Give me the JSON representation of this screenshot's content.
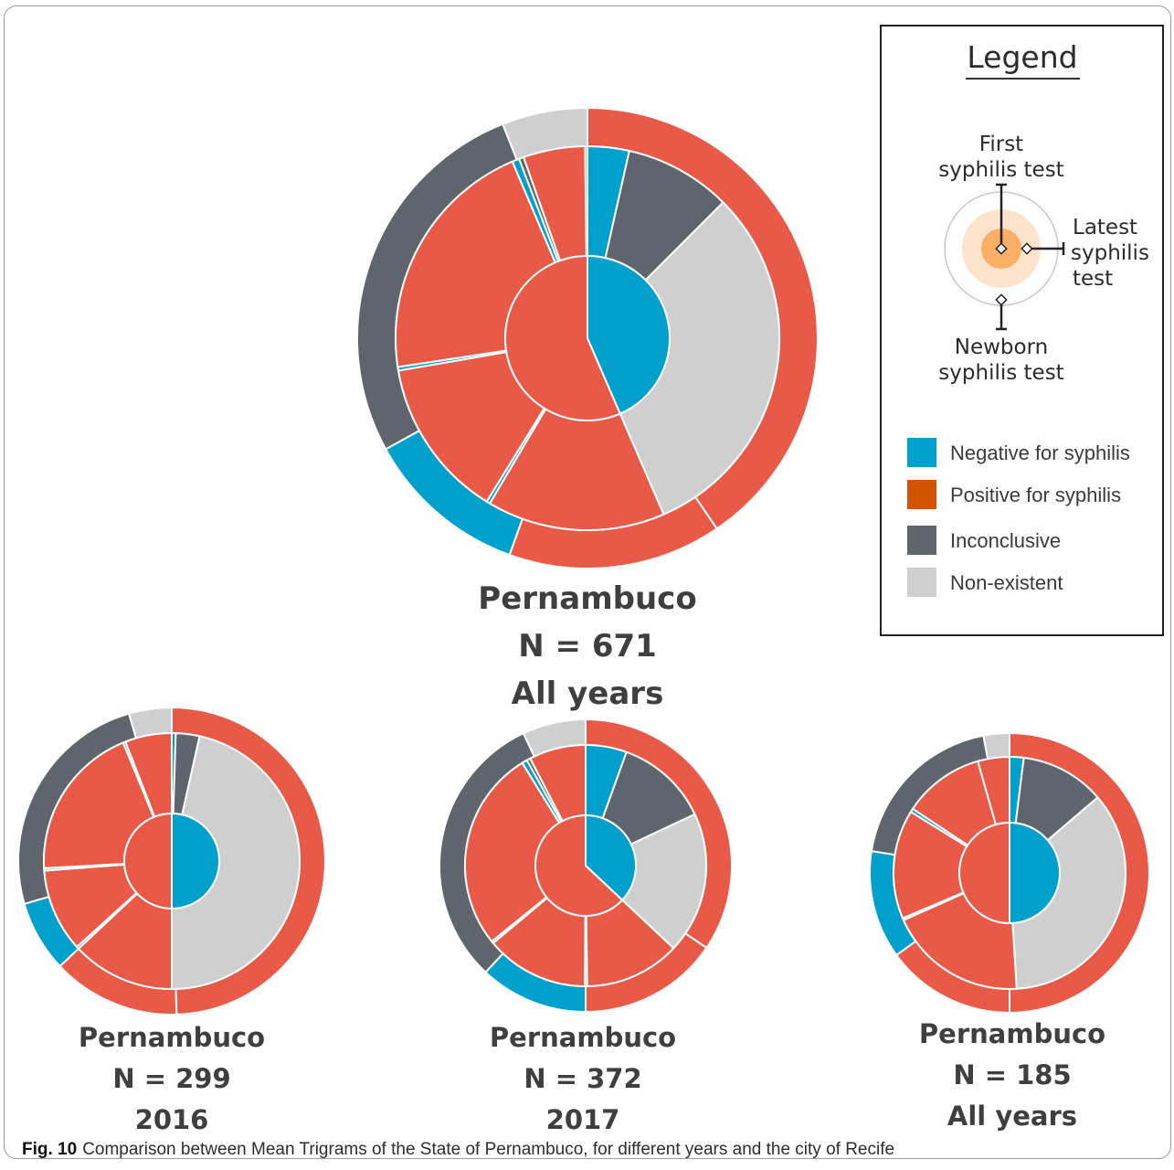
{
  "caption": {
    "label": "Fig. 10",
    "text": "Comparison between Mean Trigrams of the State of Pernambuco, for different years and the city of Recife"
  },
  "colors": {
    "negative": "#00a0cc",
    "positive": "#e85a47",
    "positive_legend": "#d35400",
    "inconclusive": "#5f656d",
    "nonexistent": "#cfcfcf"
  },
  "legend": {
    "title": "Legend",
    "first_label": [
      "First",
      "syphilis test"
    ],
    "latest_label": [
      "Latest",
      "syphilis",
      "test"
    ],
    "newborn_label": [
      "Newborn",
      "syphilis test"
    ],
    "items": [
      {
        "label": "Negative for syphilis",
        "color": "#00a0cc"
      },
      {
        "label": "Positive for syphilis",
        "color": "#d35400"
      },
      {
        "label": "Inconclusive",
        "color": "#5f656d"
      },
      {
        "label": "Non-existent",
        "color": "#cfcfcf"
      }
    ]
  },
  "chart_data": [
    {
      "type": "sunburst",
      "title_lines": [
        "Pernambuco",
        "N = 671",
        "All years"
      ],
      "rings": [
        "First syphilis test",
        "Latest syphilis test",
        "Newborn syphilis test"
      ],
      "inner": [
        {
          "status": "negative",
          "pct": 43.5
        },
        {
          "status": "positive",
          "pct": 56.5
        }
      ],
      "middle": [
        {
          "status": "negative",
          "pct": 3.5
        },
        {
          "status": "inconclusive",
          "pct": 9.0
        },
        {
          "status": "nonexistent",
          "pct": 31.0
        },
        {
          "status": "positive",
          "pct": 15.0
        },
        {
          "status": "negative",
          "pct": 0.3
        },
        {
          "status": "positive",
          "pct": 13.5
        },
        {
          "status": "negative",
          "pct": 0.3
        },
        {
          "status": "positive",
          "pct": 21.0
        },
        {
          "status": "negative",
          "pct": 0.6
        },
        {
          "status": "inconclusive",
          "pct": 0.4
        },
        {
          "status": "positive",
          "pct": 5.2
        },
        {
          "status": "nonexistent",
          "pct": 0.2
        }
      ],
      "outer": [
        {
          "status": "positive",
          "pct": 40.5
        },
        {
          "status": "positive",
          "pct": 15.0
        },
        {
          "status": "negative",
          "pct": 11.5
        },
        {
          "status": "inconclusive",
          "pct": 27.0
        },
        {
          "status": "nonexistent",
          "pct": 6.0
        }
      ]
    },
    {
      "type": "sunburst",
      "title_lines": [
        "Pernambuco",
        "N = 299",
        "2016"
      ],
      "rings": [
        "First syphilis test",
        "Latest syphilis test",
        "Newborn syphilis test"
      ],
      "inner": [
        {
          "status": "negative",
          "pct": 50.0
        },
        {
          "status": "positive",
          "pct": 50.0
        }
      ],
      "middle": [
        {
          "status": "negative",
          "pct": 0.5
        },
        {
          "status": "inconclusive",
          "pct": 3.0
        },
        {
          "status": "nonexistent",
          "pct": 46.5
        },
        {
          "status": "positive",
          "pct": 13.0
        },
        {
          "status": "negative",
          "pct": 0.3
        },
        {
          "status": "positive",
          "pct": 10.5
        },
        {
          "status": "negative",
          "pct": 0.3
        },
        {
          "status": "positive",
          "pct": 19.7
        },
        {
          "status": "negative",
          "pct": 0.3
        },
        {
          "status": "positive",
          "pct": 5.9
        }
      ],
      "outer": [
        {
          "status": "positive",
          "pct": 49.5
        },
        {
          "status": "positive",
          "pct": 13.5
        },
        {
          "status": "negative",
          "pct": 7.5
        },
        {
          "status": "inconclusive",
          "pct": 25.0
        },
        {
          "status": "nonexistent",
          "pct": 4.5
        }
      ]
    },
    {
      "type": "sunburst",
      "title_lines": [
        "Pernambuco",
        "N = 372",
        "2017"
      ],
      "rings": [
        "First syphilis test",
        "Latest syphilis test",
        "Newborn syphilis test"
      ],
      "inner": [
        {
          "status": "negative",
          "pct": 37.0
        },
        {
          "status": "positive",
          "pct": 63.0
        }
      ],
      "middle": [
        {
          "status": "negative",
          "pct": 5.5
        },
        {
          "status": "inconclusive",
          "pct": 12.5
        },
        {
          "status": "nonexistent",
          "pct": 19.0
        },
        {
          "status": "positive",
          "pct": 12.8
        },
        {
          "status": "negative",
          "pct": 0.3
        },
        {
          "status": "positive",
          "pct": 13.8
        },
        {
          "status": "negative",
          "pct": 0.3
        },
        {
          "status": "positive",
          "pct": 27.0
        },
        {
          "status": "negative",
          "pct": 0.7
        },
        {
          "status": "inconclusive",
          "pct": 0.5
        },
        {
          "status": "positive",
          "pct": 7.6
        }
      ],
      "outer": [
        {
          "status": "positive",
          "pct": 34.5
        },
        {
          "status": "positive",
          "pct": 15.5
        },
        {
          "status": "negative",
          "pct": 12.0
        },
        {
          "status": "inconclusive",
          "pct": 31.0
        },
        {
          "status": "nonexistent",
          "pct": 7.0
        }
      ]
    },
    {
      "type": "sunburst",
      "title_lines": [
        "Pernambuco",
        "N = 185",
        "All years"
      ],
      "rings": [
        "First syphilis test",
        "Latest syphilis test",
        "Newborn syphilis test"
      ],
      "inner": [
        {
          "status": "negative",
          "pct": 50.0
        },
        {
          "status": "positive",
          "pct": 50.0
        }
      ],
      "middle": [
        {
          "status": "negative",
          "pct": 2.0
        },
        {
          "status": "inconclusive",
          "pct": 12.0
        },
        {
          "status": "nonexistent",
          "pct": 36.0
        },
        {
          "status": "positive",
          "pct": 19.7
        },
        {
          "status": "negative",
          "pct": 0.3
        },
        {
          "status": "positive",
          "pct": 15.5
        },
        {
          "status": "negative",
          "pct": 0.5
        },
        {
          "status": "positive",
          "pct": 11.5
        },
        {
          "status": "positive",
          "pct": 4.5
        }
      ],
      "outer": [
        {
          "status": "positive",
          "pct": 50.0
        },
        {
          "status": "positive",
          "pct": 15.0
        },
        {
          "status": "negative",
          "pct": 12.5
        },
        {
          "status": "inconclusive",
          "pct": 19.5
        },
        {
          "status": "nonexistent",
          "pct": 3.0
        }
      ]
    }
  ]
}
